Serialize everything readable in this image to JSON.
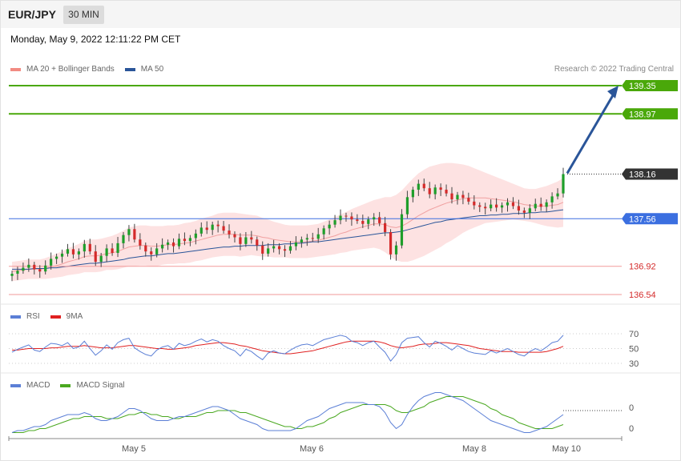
{
  "header": {
    "symbol": "EUR/JPY",
    "timeframe": "30 MIN",
    "datetime": "Monday, May 9, 2022 12:11:22 PM CET",
    "copyright": "Research © 2022 Trading Central"
  },
  "legend_main": [
    {
      "label": "MA 20 + Bollinger Bands",
      "color": "#f28b82"
    },
    {
      "label": "MA 50",
      "color": "#2a5599"
    }
  ],
  "legend_rsi": [
    {
      "label": "RSI",
      "color": "#5b7fd6"
    },
    {
      "label": "9MA",
      "color": "#e02020"
    }
  ],
  "legend_macd": [
    {
      "label": "MACD",
      "color": "#5b7fd6"
    },
    {
      "label": "MACD Signal",
      "color": "#4aa820"
    }
  ],
  "colors": {
    "up": "#1e9e2a",
    "down": "#d42a2a",
    "band": "#fde2e2",
    "resistance": "#4aa80a",
    "pivot": "#3b6fe0",
    "support": "#f29a9a",
    "arrow": "#2a5599",
    "current": "#333333"
  },
  "chart_data": [
    {
      "type": "candlestick",
      "title": "EUR/JPY",
      "ylim": [
        136.35,
        139.55
      ],
      "x_labels": [
        "May 5",
        "May 6",
        "May 8",
        "May 10"
      ],
      "levels": [
        {
          "value": 139.35,
          "label": "139.35",
          "kind": "resistance"
        },
        {
          "value": 138.97,
          "label": "138.97",
          "kind": "resistance"
        },
        {
          "value": 138.16,
          "label": "138.16",
          "kind": "current"
        },
        {
          "value": 137.56,
          "label": "137.56",
          "kind": "pivot"
        },
        {
          "value": 136.92,
          "label": "136.92",
          "kind": "support"
        },
        {
          "value": 136.54,
          "label": "136.54",
          "kind": "support"
        }
      ],
      "close": [
        136.82,
        136.86,
        136.9,
        136.94,
        136.88,
        136.85,
        136.93,
        137.02,
        137.05,
        137.09,
        137.15,
        137.08,
        137.12,
        137.22,
        137.12,
        136.98,
        137.06,
        137.16,
        137.1,
        137.23,
        137.34,
        137.42,
        137.28,
        137.2,
        137.12,
        137.08,
        137.16,
        137.21,
        137.24,
        137.19,
        137.29,
        137.26,
        137.3,
        137.36,
        137.44,
        137.41,
        137.48,
        137.46,
        137.4,
        137.35,
        137.31,
        137.22,
        137.31,
        137.28,
        137.2,
        137.09,
        137.16,
        137.19,
        137.15,
        137.13,
        137.19,
        137.24,
        137.28,
        137.3,
        137.29,
        137.35,
        137.43,
        137.48,
        137.54,
        137.6,
        137.59,
        137.55,
        137.53,
        137.49,
        137.55,
        137.58,
        137.5,
        137.38,
        137.08,
        137.2,
        137.62,
        137.85,
        137.95,
        138.03,
        137.97,
        137.89,
        137.98,
        137.95,
        137.9,
        137.82,
        137.88,
        137.84,
        137.79,
        137.74,
        137.72,
        137.7,
        137.75,
        137.71,
        137.74,
        137.78,
        137.73,
        137.67,
        137.64,
        137.7,
        137.76,
        137.72,
        137.78,
        137.86,
        137.9,
        138.16
      ],
      "ma20": [
        136.85,
        136.86,
        136.87,
        136.88,
        136.88,
        136.88,
        136.89,
        136.91,
        136.93,
        136.95,
        136.98,
        137.0,
        137.02,
        137.05,
        137.06,
        137.06,
        137.07,
        137.09,
        137.1,
        137.12,
        137.15,
        137.18,
        137.19,
        137.2,
        137.2,
        137.19,
        137.19,
        137.2,
        137.21,
        137.21,
        137.22,
        137.23,
        137.24,
        137.26,
        137.28,
        137.3,
        137.32,
        137.34,
        137.35,
        137.35,
        137.35,
        137.34,
        137.34,
        137.34,
        137.33,
        137.31,
        137.3,
        137.28,
        137.27,
        137.26,
        137.25,
        137.25,
        137.25,
        137.25,
        137.26,
        137.27,
        137.29,
        137.31,
        137.33,
        137.36,
        137.38,
        137.41,
        137.43,
        137.45,
        137.47,
        137.49,
        137.49,
        137.48,
        137.45,
        137.44,
        137.46,
        137.5,
        137.55,
        137.6,
        137.64,
        137.68,
        137.71,
        137.74,
        137.77,
        137.79,
        137.81,
        137.83,
        137.84,
        137.84,
        137.84,
        137.84,
        137.83,
        137.82,
        137.81,
        137.8,
        137.79,
        137.77,
        137.75,
        137.74,
        137.73,
        137.73,
        137.73,
        137.74,
        137.75,
        137.78
      ],
      "ma50": [
        136.88,
        136.88,
        136.88,
        136.88,
        136.89,
        136.89,
        136.89,
        136.9,
        136.9,
        136.91,
        136.92,
        136.93,
        136.94,
        136.95,
        136.96,
        136.96,
        136.97,
        136.98,
        136.99,
        137.0,
        137.01,
        137.03,
        137.04,
        137.05,
        137.06,
        137.06,
        137.07,
        137.08,
        137.09,
        137.09,
        137.1,
        137.11,
        137.12,
        137.13,
        137.14,
        137.15,
        137.16,
        137.17,
        137.18,
        137.18,
        137.19,
        137.19,
        137.2,
        137.2,
        137.2,
        137.2,
        137.21,
        137.21,
        137.21,
        137.22,
        137.22,
        137.23,
        137.23,
        137.24,
        137.25,
        137.25,
        137.26,
        137.27,
        137.28,
        137.29,
        137.3,
        137.31,
        137.32,
        137.33,
        137.34,
        137.35,
        137.36,
        137.37,
        137.37,
        137.38,
        137.39,
        137.41,
        137.43,
        137.45,
        137.47,
        137.49,
        137.51,
        137.52,
        137.54,
        137.55,
        137.56,
        137.57,
        137.58,
        137.59,
        137.6,
        137.6,
        137.61,
        137.61,
        137.62,
        137.62,
        137.63,
        137.63,
        137.63,
        137.64,
        137.64,
        137.65,
        137.65,
        137.66,
        137.67,
        137.68
      ],
      "band_width": [
        0.13,
        0.13,
        0.13,
        0.13,
        0.13,
        0.13,
        0.14,
        0.15,
        0.16,
        0.17,
        0.18,
        0.19,
        0.2,
        0.21,
        0.22,
        0.22,
        0.22,
        0.22,
        0.23,
        0.24,
        0.25,
        0.26,
        0.27,
        0.27,
        0.27,
        0.27,
        0.27,
        0.26,
        0.26,
        0.26,
        0.26,
        0.27,
        0.27,
        0.27,
        0.28,
        0.28,
        0.28,
        0.29,
        0.29,
        0.29,
        0.29,
        0.29,
        0.28,
        0.27,
        0.27,
        0.26,
        0.25,
        0.24,
        0.23,
        0.22,
        0.22,
        0.22,
        0.22,
        0.22,
        0.22,
        0.22,
        0.23,
        0.24,
        0.25,
        0.26,
        0.27,
        0.28,
        0.29,
        0.3,
        0.31,
        0.32,
        0.34,
        0.37,
        0.4,
        0.44,
        0.48,
        0.52,
        0.55,
        0.57,
        0.58,
        0.58,
        0.57,
        0.56,
        0.54,
        0.52,
        0.49,
        0.46,
        0.43,
        0.4,
        0.37,
        0.34,
        0.32,
        0.3,
        0.28,
        0.26,
        0.24,
        0.23,
        0.22,
        0.22,
        0.23,
        0.25,
        0.27,
        0.29,
        0.31,
        0.33
      ]
    },
    {
      "type": "line",
      "title": "RSI",
      "ylim": [
        25,
        75
      ],
      "y_ticks": [
        70,
        50,
        30
      ],
      "series": [
        {
          "name": "RSI",
          "values": [
            45,
            49,
            52,
            55,
            48,
            46,
            52,
            57,
            56,
            54,
            58,
            50,
            52,
            60,
            50,
            41,
            47,
            55,
            49,
            58,
            62,
            64,
            51,
            46,
            42,
            40,
            48,
            52,
            54,
            49,
            57,
            54,
            56,
            60,
            63,
            59,
            62,
            60,
            54,
            50,
            47,
            40,
            49,
            46,
            40,
            35,
            44,
            47,
            44,
            43,
            48,
            52,
            55,
            56,
            54,
            58,
            62,
            64,
            66,
            68,
            66,
            60,
            58,
            54,
            58,
            60,
            52,
            45,
            33,
            42,
            58,
            64,
            65,
            66,
            58,
            52,
            60,
            57,
            53,
            48,
            54,
            50,
            46,
            44,
            43,
            42,
            47,
            44,
            47,
            50,
            46,
            42,
            40,
            46,
            50,
            47,
            52,
            58,
            60,
            68
          ]
        },
        {
          "name": "9MA",
          "values": [
            48,
            48,
            49,
            50,
            50,
            50,
            50,
            51,
            51,
            52,
            53,
            53,
            53,
            54,
            53,
            52,
            51,
            51,
            51,
            52,
            53,
            54,
            54,
            53,
            52,
            51,
            50,
            50,
            49,
            49,
            50,
            51,
            52,
            54,
            55,
            56,
            57,
            58,
            58,
            57,
            56,
            54,
            53,
            51,
            49,
            47,
            46,
            45,
            44,
            43,
            43,
            44,
            45,
            46,
            47,
            49,
            51,
            53,
            55,
            57,
            59,
            60,
            60,
            60,
            60,
            60,
            59,
            57,
            54,
            52,
            51,
            52,
            53,
            55,
            56,
            56,
            57,
            58,
            58,
            57,
            56,
            55,
            54,
            52,
            50,
            49,
            48,
            47,
            46,
            46,
            46,
            45,
            45,
            45,
            45,
            45,
            46,
            48,
            50,
            53
          ]
        }
      ]
    },
    {
      "type": "line",
      "title": "MACD",
      "y_ticks": [
        0,
        0
      ],
      "series": [
        {
          "name": "MACD",
          "values": [
            -0.05,
            -0.04,
            -0.04,
            -0.03,
            -0.02,
            -0.02,
            -0.01,
            0.01,
            0.02,
            0.03,
            0.04,
            0.04,
            0.04,
            0.05,
            0.04,
            0.02,
            0.01,
            0.01,
            0.02,
            0.03,
            0.05,
            0.07,
            0.07,
            0.06,
            0.04,
            0.02,
            0.01,
            0.01,
            0.01,
            0.02,
            0.03,
            0.03,
            0.04,
            0.05,
            0.06,
            0.07,
            0.08,
            0.08,
            0.07,
            0.06,
            0.04,
            0.02,
            0.01,
            0.0,
            -0.01,
            -0.03,
            -0.04,
            -0.04,
            -0.04,
            -0.04,
            -0.04,
            -0.03,
            -0.01,
            0.01,
            0.02,
            0.03,
            0.05,
            0.07,
            0.08,
            0.09,
            0.1,
            0.1,
            0.1,
            0.1,
            0.09,
            0.09,
            0.08,
            0.05,
            0.0,
            -0.03,
            -0.01,
            0.04,
            0.08,
            0.11,
            0.13,
            0.14,
            0.15,
            0.15,
            0.14,
            0.13,
            0.12,
            0.11,
            0.09,
            0.07,
            0.05,
            0.03,
            0.01,
            0.0,
            -0.01,
            -0.02,
            -0.03,
            -0.04,
            -0.05,
            -0.05,
            -0.04,
            -0.03,
            -0.02,
            0.0,
            0.02,
            0.04
          ]
        },
        {
          "name": "MACD Signal",
          "values": [
            -0.05,
            -0.05,
            -0.05,
            -0.04,
            -0.04,
            -0.03,
            -0.03,
            -0.02,
            -0.01,
            0.0,
            0.01,
            0.02,
            0.02,
            0.03,
            0.03,
            0.03,
            0.03,
            0.02,
            0.02,
            0.02,
            0.03,
            0.04,
            0.04,
            0.05,
            0.05,
            0.04,
            0.04,
            0.03,
            0.03,
            0.02,
            0.02,
            0.03,
            0.03,
            0.03,
            0.04,
            0.05,
            0.05,
            0.06,
            0.06,
            0.06,
            0.06,
            0.05,
            0.05,
            0.04,
            0.03,
            0.02,
            0.01,
            0.0,
            -0.01,
            -0.02,
            -0.02,
            -0.03,
            -0.03,
            -0.02,
            -0.02,
            -0.01,
            0.0,
            0.02,
            0.03,
            0.05,
            0.06,
            0.07,
            0.08,
            0.09,
            0.09,
            0.09,
            0.09,
            0.09,
            0.08,
            0.06,
            0.05,
            0.05,
            0.06,
            0.07,
            0.08,
            0.1,
            0.11,
            0.12,
            0.13,
            0.13,
            0.13,
            0.13,
            0.12,
            0.11,
            0.1,
            0.09,
            0.07,
            0.06,
            0.04,
            0.03,
            0.02,
            0.0,
            -0.01,
            -0.02,
            -0.03,
            -0.03,
            -0.03,
            -0.03,
            -0.02,
            -0.01
          ]
        }
      ]
    }
  ]
}
